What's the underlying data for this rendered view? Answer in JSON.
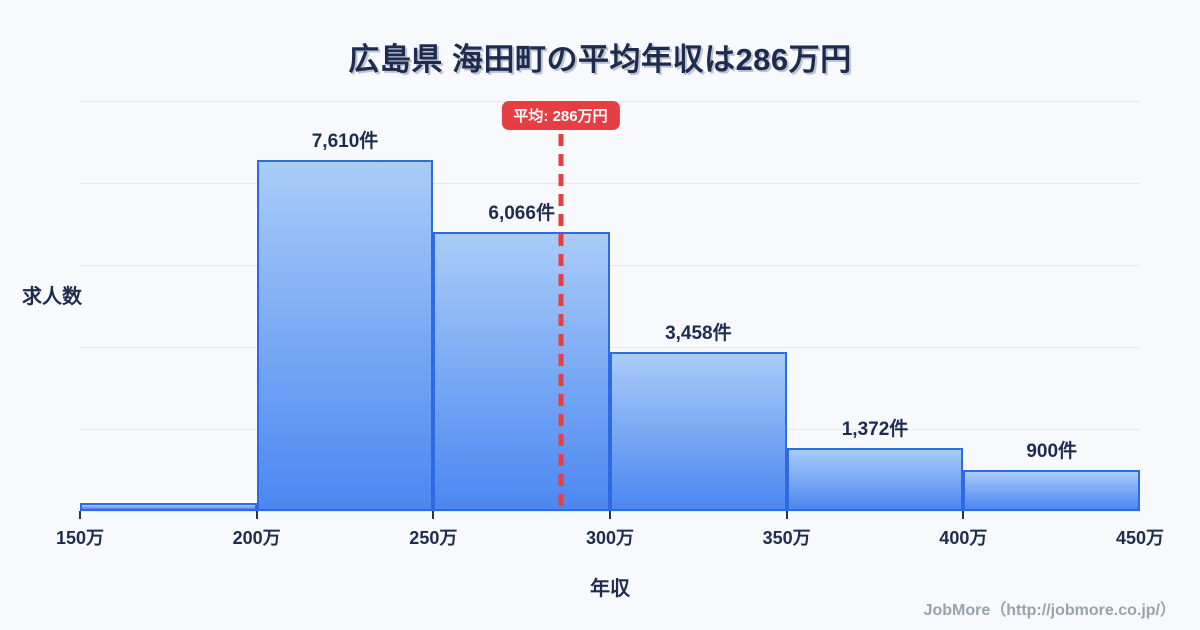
{
  "title": {
    "text": "広島県 海田町の平均年収は286万円"
  },
  "chart_data": {
    "type": "bar",
    "title": "広島県 海田町の平均年収は286万円",
    "xlabel": "年収",
    "ylabel": "求人数",
    "x_tick_labels": [
      "150万",
      "200万",
      "250万",
      "300万",
      "350万",
      "400万",
      "450万"
    ],
    "x_range": [
      150,
      450
    ],
    "ylim": [
      0,
      8900
    ],
    "grid": true,
    "gridline_count": 6,
    "legend": "none",
    "bins": [
      {
        "range": "150万-200万",
        "value": 180,
        "label": ""
      },
      {
        "range": "200万-250万",
        "value": 7610,
        "label": "7,610件"
      },
      {
        "range": "250万-300万",
        "value": 6066,
        "label": "6,066件"
      },
      {
        "range": "300万-350万",
        "value": 3458,
        "label": "3,458件"
      },
      {
        "range": "350万-400万",
        "value": 1372,
        "label": "1,372件"
      },
      {
        "range": "400万-450万",
        "value": 900,
        "label": "900件"
      }
    ],
    "average": {
      "value": 286,
      "label": "平均: 286万円"
    }
  },
  "footer": {
    "text": "JobMore（http://jobmore.co.jp/）"
  },
  "colors": {
    "background": "#f7f9fc",
    "text_dark": "#1e2b4d",
    "bar_fill_top": "#a9ccf8",
    "bar_fill_bottom": "#4c87f1",
    "bar_border": "#2d6ae4",
    "average_red": "#e63e42",
    "gridline": "#e4e8f0",
    "footer_gray": "#9aa2ac"
  }
}
